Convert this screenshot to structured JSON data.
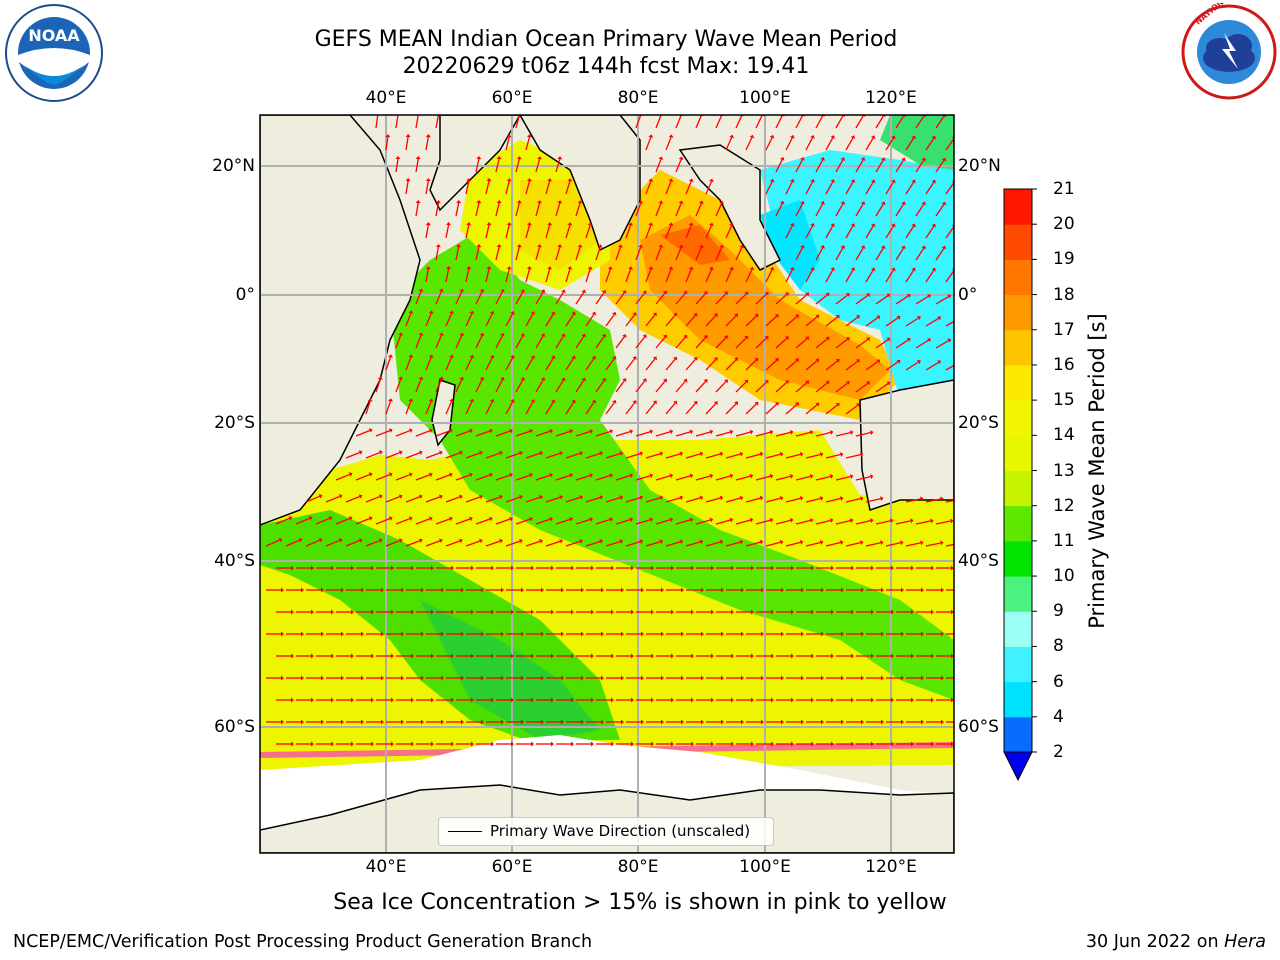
{
  "header": {
    "title_line1": "GEFS MEAN Indian Ocean Primary Wave Mean Period",
    "title_line2": "20220629 t06z 144h fcst   Max: 19.41"
  },
  "logos": {
    "left": {
      "name": "NOARA-logo",
      "text": "NOAA"
    },
    "right": {
      "name": "national-weather-service-logo",
      "text": "NATIONAL WEATHER SERVICE"
    }
  },
  "map": {
    "lon_ticks": [
      "40°E",
      "60°E",
      "80°E",
      "100°E",
      "120°E"
    ],
    "lat_ticks": [
      "20°N",
      "0°",
      "20°S",
      "40°S",
      "60°S"
    ],
    "legend_label": "Primary Wave Direction (unscaled)",
    "land_color": "#efeddd",
    "arrow_color": "#ff0000",
    "ice_colors": [
      "#ff00ff",
      "#ffff00"
    ]
  },
  "colorbar": {
    "label": "Primary Wave Mean Period [s]",
    "ticks": [
      "2",
      "4",
      "6",
      "8",
      "9",
      "10",
      "11",
      "12",
      "13",
      "14",
      "15",
      "16",
      "17",
      "18",
      "19",
      "20",
      "21"
    ],
    "colors": [
      "#0a6cff",
      "#00e1ff",
      "#40f2ff",
      "#9cfff6",
      "#4cf27f",
      "#00e400",
      "#5ee800",
      "#c6f400",
      "#e6f700",
      "#f1f600",
      "#fbea00",
      "#ffc400",
      "#ff9900",
      "#ff7600",
      "#ff4b00",
      "#ff1700"
    ],
    "extend_min_color": "#0000ee"
  },
  "caption": "Sea Ice Concentration > 15% is shown in pink to yellow",
  "footer": {
    "left": "NCEP/EMC/Verification Post Processing Product Generation Branch",
    "right_date": "30 Jun 2022 on",
    "right_host": "Hera"
  }
}
